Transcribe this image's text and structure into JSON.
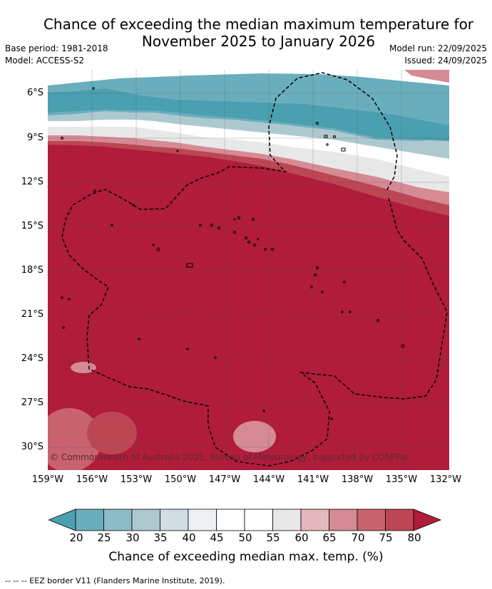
{
  "title_line1": "Chance of exceeding the median maximum temperature for",
  "title_line2": "November 2025 to January 2026",
  "meta": {
    "base_period": "Base period: 1981-2018",
    "model": "Model: ACCESS-S2",
    "model_run": "Model run: 22/09/2025",
    "issued": "Issued: 24/09/2025"
  },
  "copyright": "© Commonwealth of Australia 2025, Bureau of Meteorology, supported by COSPPac",
  "lat_labels": [
    "6°S",
    "9°S",
    "12°S",
    "15°S",
    "18°S",
    "21°S",
    "24°S",
    "27°S",
    "30°S"
  ],
  "lon_labels": [
    "159°W",
    "156°W",
    "153°W",
    "150°W",
    "147°W",
    "144°W",
    "141°W",
    "138°W",
    "135°W",
    "132°W"
  ],
  "colorbar": {
    "ticks": [
      "20",
      "25",
      "30",
      "35",
      "40",
      "45",
      "50",
      "55",
      "60",
      "65",
      "70",
      "75",
      "80"
    ],
    "colors": [
      "#4a9fb0",
      "#6aaebd",
      "#8cbcc8",
      "#adc9cf",
      "#d1dde0",
      "#edf1f3",
      "#ffffff",
      "#ffffff",
      "#e8e8e8",
      "#e4b8c0",
      "#d68a94",
      "#c9626f",
      "#bd4655",
      "#b01c3a"
    ],
    "title": "Chance of exceeding median max. temp. (%)"
  },
  "footer": "--  --  -- EEZ border V11 (Flanders Marine Institute, 2019)."
}
